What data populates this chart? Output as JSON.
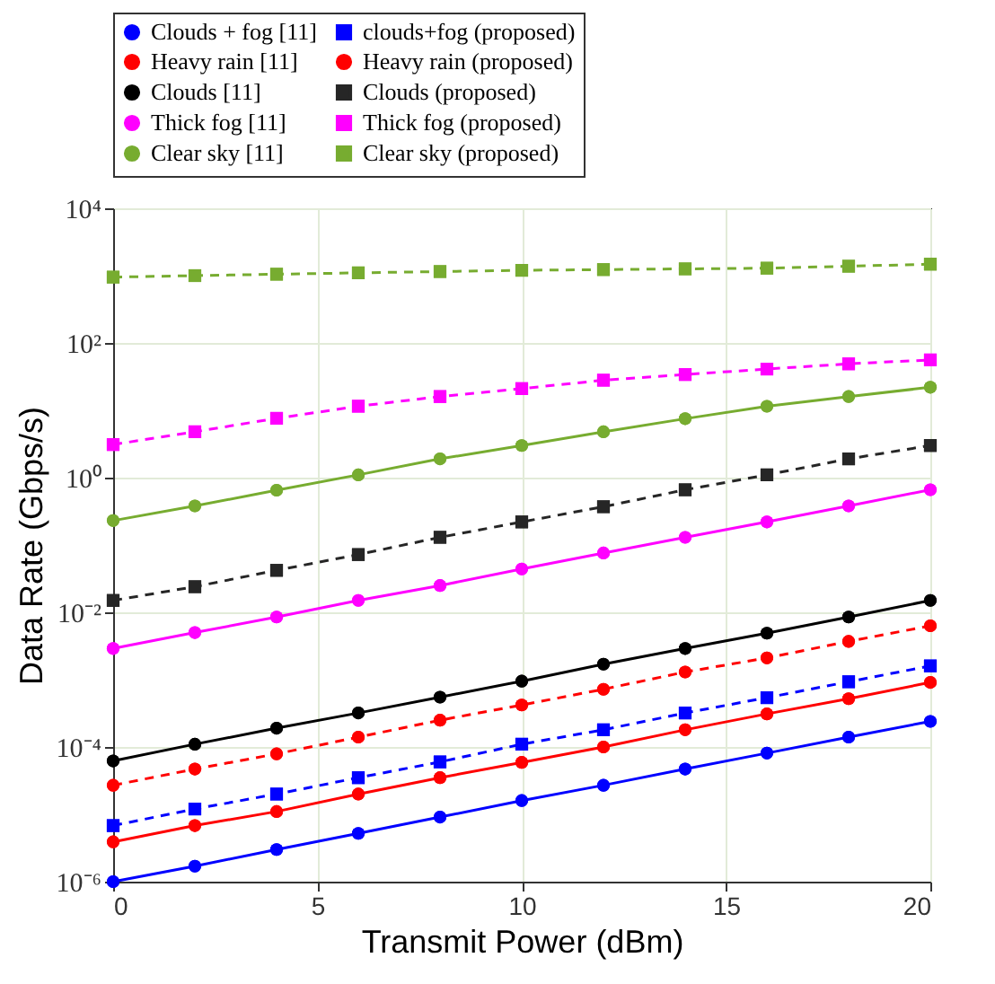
{
  "chart_data": {
    "type": "line",
    "xlabel": "Transmit Power (dBm)",
    "ylabel": "Data Rate (Gbps/s)",
    "x": [
      0,
      2,
      4,
      6,
      8,
      10,
      12,
      14,
      16,
      18,
      20
    ],
    "xlim": [
      0,
      20
    ],
    "xticks": [
      0,
      5,
      10,
      15,
      20
    ],
    "ylim": [
      1e-06,
      10000
    ],
    "log": "y",
    "yticks": [
      {
        "value": 1e-06,
        "label": "10⁻⁶"
      },
      {
        "value": 0.0001,
        "label": "10⁻⁴"
      },
      {
        "value": 0.01,
        "label": "10⁻²"
      },
      {
        "value": 1,
        "label": "10⁰"
      },
      {
        "value": 100,
        "label": "10²"
      },
      {
        "value": 10000,
        "label": "10⁴"
      }
    ],
    "grid": true,
    "legend": "top",
    "series": [
      {
        "name": "Clouds + fog [11]",
        "color": "#0000ff",
        "marker": "circle",
        "line_style": "solid",
        "values": [
          1e-06,
          1.7e-06,
          3e-06,
          5.2e-06,
          9.1e-06,
          1.6e-05,
          2.7e-05,
          4.7e-05,
          8.1e-05,
          0.00014,
          0.00024
        ]
      },
      {
        "name": "clouds+fog (proposed)",
        "color": "#0000ff",
        "marker": "square",
        "line_style": "dashed",
        "values": [
          6.8e-06,
          1.2e-05,
          2e-05,
          3.5e-05,
          6e-05,
          0.00011,
          0.00018,
          0.00032,
          0.00054,
          0.00093,
          0.0016
        ]
      },
      {
        "name": "Heavy rain [11]",
        "color": "#ff0000",
        "marker": "circle",
        "line_style": "solid",
        "values": [
          3.9e-06,
          6.8e-06,
          1.1e-05,
          2e-05,
          3.5e-05,
          5.9e-05,
          0.0001,
          0.00018,
          0.00031,
          0.00052,
          0.00091
        ]
      },
      {
        "name": "Heavy rain (proposed)",
        "color": "#ff0000",
        "marker": "circle",
        "line_style": "dashed",
        "values": [
          2.7e-05,
          4.7e-05,
          7.9e-05,
          0.00014,
          0.00025,
          0.00042,
          0.00072,
          0.0013,
          0.0021,
          0.0037,
          0.0063
        ]
      },
      {
        "name": "Clouds [11]",
        "color": "#000000",
        "marker": "circle",
        "line_style": "solid",
        "values": [
          6.2e-05,
          0.00011,
          0.00019,
          0.00032,
          0.00055,
          0.00095,
          0.0017,
          0.0029,
          0.0049,
          0.0085,
          0.015
        ]
      },
      {
        "name": "Clouds (proposed)",
        "color": "#262626",
        "marker": "square",
        "line_style": "dashed",
        "values": [
          0.015,
          0.024,
          0.042,
          0.072,
          0.13,
          0.22,
          0.37,
          0.66,
          1.1,
          1.9,
          3.0
        ]
      },
      {
        "name": "Thick fog [11]",
        "color": "#ff00ff",
        "marker": "circle",
        "line_style": "solid",
        "values": [
          0.0029,
          0.005,
          0.0085,
          0.015,
          0.025,
          0.044,
          0.076,
          0.13,
          0.22,
          0.38,
          0.66
        ]
      },
      {
        "name": "Thick fog (proposed)",
        "color": "#ff00ff",
        "marker": "square",
        "line_style": "dashed",
        "values": [
          3.1,
          4.8,
          7.6,
          11.5,
          16,
          21,
          28,
          34,
          41,
          49,
          56
        ]
      },
      {
        "name": "Clear sky [11]",
        "color": "#77ac30",
        "marker": "circle",
        "line_style": "solid",
        "values": [
          0.23,
          0.38,
          0.65,
          1.1,
          1.9,
          3.0,
          4.8,
          7.5,
          11.5,
          16,
          22
        ]
      },
      {
        "name": "Clear sky (proposed)",
        "color": "#77ac30",
        "marker": "square",
        "line_style": "dashed",
        "values": [
          950,
          1000,
          1050,
          1100,
          1150,
          1200,
          1230,
          1260,
          1290,
          1380,
          1480
        ]
      }
    ]
  }
}
